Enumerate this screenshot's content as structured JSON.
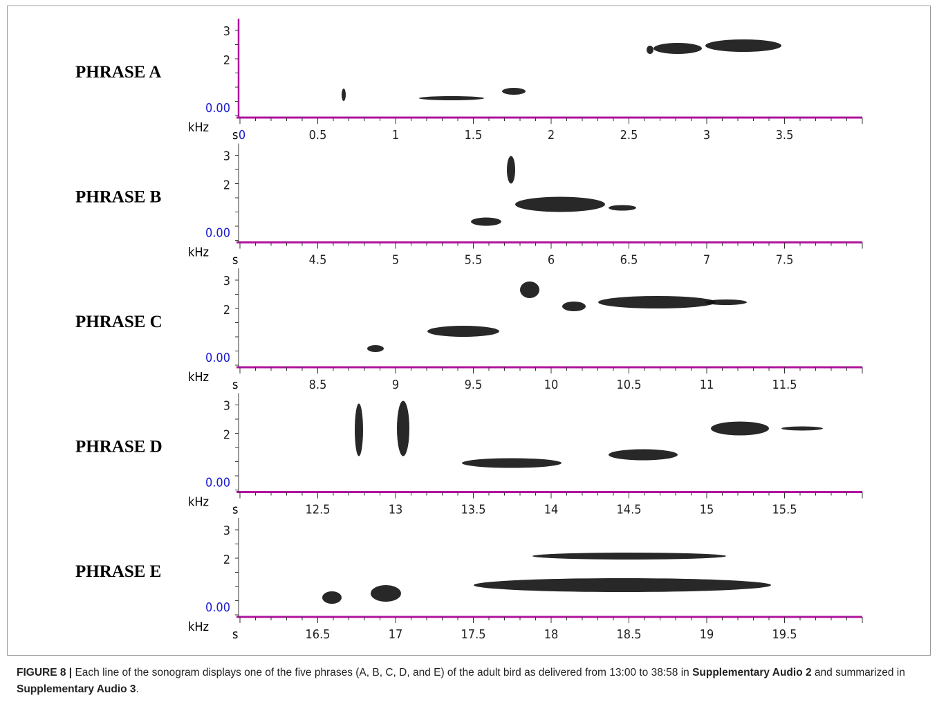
{
  "figure": {
    "panels": [
      {
        "label": "PHRASE A",
        "yticks": [
          "3",
          "2",
          "0.00"
        ],
        "y_unit": "kHz",
        "x_unit": "s",
        "xticks": [
          "0",
          "0.5",
          "1",
          "1.5",
          "2",
          "2.5",
          "3",
          "3.5"
        ]
      },
      {
        "label": "PHRASE B",
        "yticks": [
          "3",
          "2",
          "0.00"
        ],
        "y_unit": "kHz",
        "x_unit": "s",
        "xticks": [
          "4.5",
          "5",
          "5.5",
          "6",
          "6.5",
          "7",
          "7.5"
        ]
      },
      {
        "label": "PHRASE C",
        "yticks": [
          "3",
          "2",
          "0.00"
        ],
        "y_unit": "kHz",
        "x_unit": "s",
        "xticks": [
          "8.5",
          "9",
          "9.5",
          "10",
          "10.5",
          "11",
          "11.5"
        ]
      },
      {
        "label": "PHRASE D",
        "yticks": [
          "3",
          "2",
          "0.00"
        ],
        "y_unit": "kHz",
        "x_unit": "s",
        "xticks": [
          "12.5",
          "13",
          "13.5",
          "14",
          "14.5",
          "15",
          "15.5"
        ]
      },
      {
        "label": "PHRASE E",
        "yticks": [
          "3",
          "2",
          "0.00"
        ],
        "y_unit": "kHz",
        "x_unit": "s",
        "xticks": [
          "16.5",
          "17",
          "17.5",
          "18",
          "18.5",
          "19",
          "19.5"
        ]
      }
    ]
  },
  "caption": {
    "label": "FIGURE 8 |",
    "segments": [
      {
        "text": " Each line of the sonogram displays one of the five phrases (A, B, C, D, and E) of the adult bird as delivered from 13:00 to 38:58 in ",
        "bold": false
      },
      {
        "text": "Supplementary Audio 2",
        "bold": true
      },
      {
        "text": " and summarized in ",
        "bold": false
      },
      {
        "text": "Supplementary Audio 3",
        "bold": true
      },
      {
        "text": ".",
        "bold": false
      }
    ]
  }
}
